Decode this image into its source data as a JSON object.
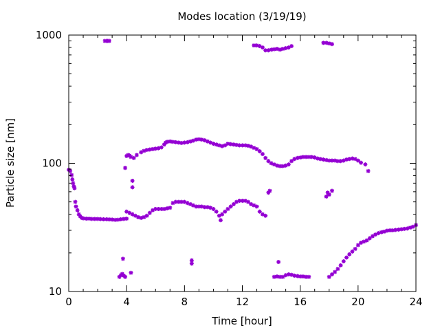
{
  "chart_data": {
    "type": "scatter",
    "title": "Modes location (3/19/19)",
    "xlabel": "Time [hour]",
    "ylabel": "Particle size [nm]",
    "xlim": [
      0,
      24
    ],
    "ylim": [
      10,
      1000
    ],
    "yscale": "log",
    "grid": false,
    "legend": "none",
    "marker_color": "#9400d3",
    "xticks": [
      0,
      4,
      8,
      12,
      16,
      20,
      24
    ],
    "xtick_labels": [
      "0",
      "4",
      "8",
      "12",
      "16",
      "20",
      "24"
    ],
    "yticks": [
      10,
      100,
      1000
    ],
    "ytick_labels": [
      "10",
      "100",
      "1000"
    ],
    "series": [
      {
        "points": [
          [
            0.0,
            89
          ],
          [
            0.1,
            87
          ],
          [
            0.2,
            81
          ],
          [
            0.25,
            75
          ],
          [
            0.3,
            70
          ],
          [
            0.35,
            66
          ],
          [
            0.4,
            64
          ],
          [
            0.45,
            50
          ],
          [
            0.5,
            46
          ],
          [
            0.6,
            43
          ],
          [
            0.7,
            40
          ],
          [
            0.8,
            38.5
          ],
          [
            0.9,
            37.5
          ],
          [
            1.0,
            37.2
          ],
          [
            1.2,
            37
          ],
          [
            1.4,
            37
          ],
          [
            1.6,
            36.8
          ],
          [
            1.8,
            36.8
          ],
          [
            2.0,
            36.8
          ],
          [
            2.2,
            36.7
          ],
          [
            2.4,
            36.6
          ],
          [
            2.6,
            36.6
          ],
          [
            2.8,
            36.5
          ],
          [
            3.0,
            36.4
          ],
          [
            3.2,
            36.2
          ],
          [
            3.4,
            36.3
          ],
          [
            3.6,
            36.6
          ],
          [
            3.8,
            36.8
          ],
          [
            4.0,
            37
          ],
          [
            2.5,
            900
          ],
          [
            2.6,
            900
          ],
          [
            2.7,
            900
          ],
          [
            2.8,
            900
          ],
          [
            3.5,
            13
          ],
          [
            3.6,
            13.4
          ],
          [
            3.7,
            13.7
          ],
          [
            3.8,
            13.3
          ],
          [
            3.9,
            13
          ],
          [
            3.75,
            18
          ],
          [
            4.3,
            14
          ],
          [
            4.4,
            65
          ],
          [
            4.4,
            73
          ],
          [
            3.9,
            92
          ],
          [
            4.0,
            114
          ],
          [
            4.1,
            116
          ],
          [
            4.2,
            115
          ],
          [
            4.3,
            112
          ],
          [
            4.5,
            110
          ],
          [
            4.7,
            116
          ],
          [
            5.0,
            122
          ],
          [
            5.2,
            125
          ],
          [
            5.4,
            127
          ],
          [
            5.6,
            128
          ],
          [
            5.8,
            129
          ],
          [
            6.0,
            130
          ],
          [
            6.2,
            131
          ],
          [
            6.4,
            133
          ],
          [
            6.6,
            140
          ],
          [
            6.7,
            145
          ],
          [
            6.8,
            147
          ],
          [
            7.0,
            148
          ],
          [
            7.2,
            147
          ],
          [
            7.4,
            146
          ],
          [
            7.6,
            145
          ],
          [
            7.8,
            144
          ],
          [
            8.0,
            145
          ],
          [
            8.2,
            146
          ],
          [
            8.4,
            148
          ],
          [
            8.6,
            150
          ],
          [
            8.8,
            153
          ],
          [
            9.0,
            154
          ],
          [
            9.2,
            153
          ],
          [
            9.4,
            151
          ],
          [
            9.6,
            148
          ],
          [
            9.8,
            145
          ],
          [
            10.0,
            142
          ],
          [
            10.2,
            140
          ],
          [
            10.4,
            138
          ],
          [
            10.6,
            136
          ],
          [
            10.8,
            138
          ],
          [
            11.0,
            142
          ],
          [
            11.2,
            141
          ],
          [
            11.4,
            140
          ],
          [
            11.6,
            139
          ],
          [
            11.8,
            138
          ],
          [
            12.0,
            138
          ],
          [
            12.2,
            138
          ],
          [
            12.4,
            137
          ],
          [
            12.6,
            135
          ],
          [
            12.8,
            132
          ],
          [
            13.0,
            129
          ],
          [
            13.2,
            124
          ],
          [
            13.4,
            118
          ],
          [
            13.6,
            110
          ],
          [
            13.8,
            104
          ],
          [
            14.0,
            100
          ],
          [
            14.2,
            98
          ],
          [
            14.4,
            96
          ],
          [
            14.6,
            95
          ],
          [
            14.8,
            95
          ],
          [
            15.0,
            96
          ],
          [
            15.2,
            98
          ],
          [
            15.4,
            104
          ],
          [
            15.6,
            108
          ],
          [
            15.8,
            110
          ],
          [
            16.0,
            111
          ],
          [
            16.2,
            112
          ],
          [
            16.4,
            112
          ],
          [
            16.6,
            112
          ],
          [
            16.8,
            112
          ],
          [
            17.0,
            111
          ],
          [
            17.2,
            109
          ],
          [
            17.4,
            108
          ],
          [
            17.6,
            107
          ],
          [
            17.8,
            106
          ],
          [
            18.0,
            105
          ],
          [
            18.2,
            105
          ],
          [
            18.4,
            105
          ],
          [
            18.6,
            104
          ],
          [
            18.8,
            104
          ],
          [
            19.0,
            105
          ],
          [
            19.2,
            107
          ],
          [
            19.4,
            108
          ],
          [
            19.6,
            109
          ],
          [
            19.8,
            108
          ],
          [
            20.0,
            105
          ],
          [
            20.2,
            101
          ],
          [
            20.5,
            98
          ],
          [
            20.7,
            87
          ],
          [
            4.0,
            42
          ],
          [
            4.2,
            41
          ],
          [
            4.4,
            40
          ],
          [
            4.6,
            39
          ],
          [
            4.8,
            38
          ],
          [
            5.0,
            37.5
          ],
          [
            5.2,
            38
          ],
          [
            5.4,
            39
          ],
          [
            5.6,
            41
          ],
          [
            5.8,
            43
          ],
          [
            6.0,
            44
          ],
          [
            6.2,
            44
          ],
          [
            6.4,
            44
          ],
          [
            6.6,
            44
          ],
          [
            6.8,
            44.5
          ],
          [
            7.0,
            45
          ],
          [
            7.2,
            49
          ],
          [
            7.4,
            50
          ],
          [
            7.6,
            50
          ],
          [
            7.8,
            50
          ],
          [
            8.0,
            50
          ],
          [
            8.2,
            49
          ],
          [
            8.4,
            48
          ],
          [
            8.6,
            47
          ],
          [
            8.8,
            46
          ],
          [
            9.0,
            46
          ],
          [
            9.2,
            46
          ],
          [
            9.4,
            45.5
          ],
          [
            9.6,
            45.5
          ],
          [
            9.8,
            45
          ],
          [
            10.0,
            44
          ],
          [
            10.2,
            42
          ],
          [
            10.4,
            39
          ],
          [
            10.5,
            36
          ],
          [
            10.6,
            40
          ],
          [
            10.8,
            42
          ],
          [
            11.0,
            44
          ],
          [
            11.2,
            46
          ],
          [
            11.4,
            48
          ],
          [
            11.6,
            50
          ],
          [
            11.8,
            51
          ],
          [
            12.0,
            51
          ],
          [
            12.2,
            51
          ],
          [
            12.4,
            50
          ],
          [
            12.6,
            48
          ],
          [
            12.8,
            47
          ],
          [
            13.0,
            46
          ],
          [
            13.2,
            42
          ],
          [
            13.4,
            40
          ],
          [
            13.6,
            39
          ],
          [
            8.5,
            17.5
          ],
          [
            8.5,
            16.5
          ],
          [
            13.8,
            59
          ],
          [
            13.9,
            61
          ],
          [
            12.8,
            830
          ],
          [
            13.0,
            830
          ],
          [
            13.2,
            820
          ],
          [
            13.4,
            800
          ],
          [
            13.6,
            760
          ],
          [
            13.8,
            760
          ],
          [
            14.0,
            770
          ],
          [
            14.2,
            775
          ],
          [
            14.4,
            780
          ],
          [
            14.6,
            770
          ],
          [
            14.8,
            780
          ],
          [
            15.0,
            790
          ],
          [
            15.2,
            800
          ],
          [
            15.4,
            820
          ],
          [
            14.2,
            13
          ],
          [
            14.4,
            13.1
          ],
          [
            14.5,
            17
          ],
          [
            14.6,
            13
          ],
          [
            14.8,
            13
          ],
          [
            15.0,
            13.4
          ],
          [
            15.2,
            13.6
          ],
          [
            15.4,
            13.5
          ],
          [
            15.6,
            13.3
          ],
          [
            15.8,
            13.2
          ],
          [
            16.0,
            13.1
          ],
          [
            16.2,
            13.1
          ],
          [
            16.4,
            13
          ],
          [
            16.6,
            13
          ],
          [
            17.6,
            870
          ],
          [
            17.8,
            870
          ],
          [
            18.0,
            860
          ],
          [
            18.2,
            850
          ],
          [
            17.8,
            55
          ],
          [
            17.9,
            59
          ],
          [
            18.0,
            57
          ],
          [
            18.2,
            61
          ],
          [
            18.0,
            13
          ],
          [
            18.2,
            13.6
          ],
          [
            18.4,
            14.2
          ],
          [
            18.6,
            15
          ],
          [
            18.8,
            16
          ],
          [
            19.0,
            17.2
          ],
          [
            19.2,
            18.4
          ],
          [
            19.4,
            19.5
          ],
          [
            19.6,
            20.5
          ],
          [
            19.8,
            21.5
          ],
          [
            20.0,
            23
          ],
          [
            20.2,
            24
          ],
          [
            20.4,
            24.5
          ],
          [
            20.6,
            25
          ],
          [
            20.8,
            26
          ],
          [
            21.0,
            27
          ],
          [
            21.2,
            27.8
          ],
          [
            21.4,
            28.5
          ],
          [
            21.6,
            29
          ],
          [
            21.8,
            29.3
          ],
          [
            22.0,
            29.8
          ],
          [
            22.2,
            30
          ],
          [
            22.4,
            30
          ],
          [
            22.6,
            30.2
          ],
          [
            22.8,
            30.4
          ],
          [
            23.0,
            30.6
          ],
          [
            23.2,
            30.8
          ],
          [
            23.4,
            31
          ],
          [
            23.6,
            31.5
          ],
          [
            23.8,
            32
          ],
          [
            24.0,
            33
          ]
        ]
      }
    ]
  }
}
